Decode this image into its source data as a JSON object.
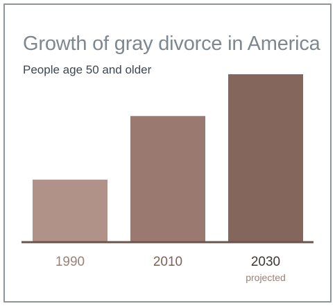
{
  "chart_data": {
    "type": "bar",
    "title": "Growth of gray divorce in America",
    "subtitle": "People age 50 and older",
    "categories": [
      "1990",
      "2010",
      "2030"
    ],
    "category_notes": [
      "",
      "",
      "projected"
    ],
    "values": [
      0.37,
      0.75,
      1.0
    ],
    "ylim": [
      0,
      1.0
    ],
    "ylabel": "",
    "xlabel": "",
    "grid": false,
    "legend": "none",
    "colors": [
      "#b09289",
      "#9a7970",
      "#84665c"
    ],
    "axis_color": "#6d5349",
    "tick_label_colors": [
      "#9b8078",
      "#7d6259",
      "#3f3633"
    ],
    "note_color": "#9b8078"
  }
}
